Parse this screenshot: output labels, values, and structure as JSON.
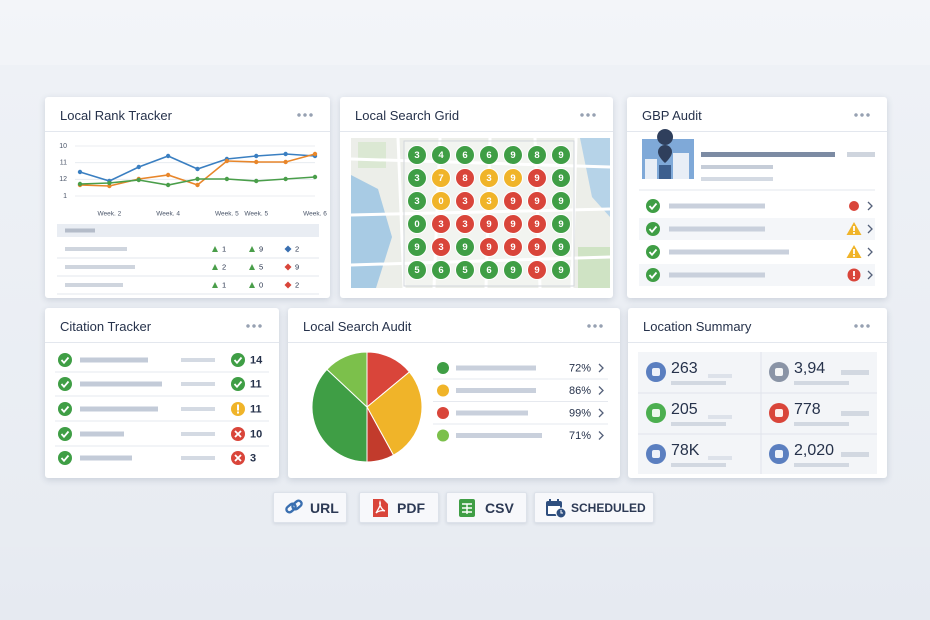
{
  "rank_tracker": {
    "title": "Local Rank Tracker",
    "chart": {
      "type": "line",
      "categories": [
        null,
        "Week. 2",
        null,
        "Week. 4",
        null,
        "Week. 5",
        "Week. 5",
        null,
        "Week. 6"
      ],
      "series": [
        {
          "color": "#3a7fc1",
          "values": [
            11.56,
            12.1,
            11.26,
            10.6,
            11.38,
            10.78,
            10.6,
            10.48,
            10.6
          ]
        },
        {
          "color": "#e8862a",
          "values": [
            12.34,
            12.4,
            11.98,
            11.74,
            12.34,
            10.9,
            10.96,
            10.96,
            10.48
          ]
        },
        {
          "color": "#4a9e4a",
          "values": [
            12.28,
            12.22,
            12.04,
            12.34,
            11.98,
            11.98,
            12.1,
            11.98,
            11.86
          ]
        }
      ],
      "ylim": [
        9.7,
        13.3
      ],
      "yticks": [
        10,
        11,
        12,
        {
          "value": 13,
          "label": "1"
        }
      ],
      "y_reversed": true,
      "grid": true
    },
    "table": {
      "rows": [
        [
          1,
          9,
          2
        ],
        [
          2,
          5,
          9
        ],
        [
          1,
          0,
          2
        ]
      ],
      "icon_colors": [
        [
          "#4a9e4a",
          "#4a9e4a",
          "#3a6fb0"
        ],
        [
          "#4a9e4a",
          "#4a9e4a",
          "#d9453a"
        ],
        [
          "#4a9e4a",
          "#4a9e4a",
          "#d9453a"
        ]
      ]
    }
  },
  "search_grid": {
    "title": "Local Search Grid",
    "rows": [
      {
        "values": [
          3,
          4,
          6,
          6,
          9,
          8,
          9
        ],
        "colors": [
          "#3f9e45",
          "#3f9e45",
          "#3f9e45",
          "#3f9e45",
          "#3f9e45",
          "#3f9e45",
          "#3f9e45"
        ]
      },
      {
        "values": [
          3,
          7,
          8,
          3,
          9,
          9,
          9
        ],
        "colors": [
          "#3f9e45",
          "#f0b429",
          "#d9453a",
          "#f0b429",
          "#f0b429",
          "#d9453a",
          "#3f9e45"
        ]
      },
      {
        "values": [
          3,
          0,
          3,
          3,
          9,
          9,
          9
        ],
        "colors": [
          "#3f9e45",
          "#f0b429",
          "#d9453a",
          "#f0b429",
          "#d9453a",
          "#d9453a",
          "#3f9e45"
        ]
      },
      {
        "values": [
          0,
          3,
          3,
          9,
          9,
          9,
          9
        ],
        "colors": [
          "#3f9e45",
          "#d9453a",
          "#d9453a",
          "#d9453a",
          "#d9453a",
          "#d9453a",
          "#3f9e45"
        ]
      },
      {
        "values": [
          9,
          3,
          9,
          9,
          9,
          9,
          9
        ],
        "colors": [
          "#3f9e45",
          "#d9453a",
          "#3f9e45",
          "#d9453a",
          "#d9453a",
          "#d9453a",
          "#3f9e45"
        ]
      },
      {
        "values": [
          5,
          6,
          5,
          6,
          9,
          9,
          9
        ],
        "colors": [
          "#3f9e45",
          "#3f9e45",
          "#3f9e45",
          "#3f9e45",
          "#3f9e45",
          "#d9453a",
          "#3f9e45"
        ]
      }
    ]
  },
  "gbp_audit": {
    "title": "GBP Audit"
  },
  "citation_tracker": {
    "title": "Citation Tracker",
    "values": [
      14,
      11,
      11,
      10,
      3
    ]
  },
  "search_audit": {
    "title": "Local Search Audit",
    "pie": {
      "type": "pie",
      "values": [
        14,
        28,
        8,
        37,
        13
      ],
      "colors": [
        "#d9453a",
        "#f0b429",
        "#c23b2c",
        "#3f9e45",
        "#7cc04b"
      ]
    },
    "metrics": {
      "values": [
        72,
        86,
        99,
        71
      ],
      "value_labels": [
        "72%",
        "86%",
        "99%",
        "71%"
      ],
      "colors": [
        "#3f9e45",
        "#f0b429",
        "#d9453a",
        "#7cc04b"
      ]
    }
  },
  "location_summary": {
    "title": "Location Summary",
    "stats": [
      "263",
      "3,94",
      "205",
      "778",
      "78K",
      "2,020"
    ]
  },
  "buttons": [
    "URL",
    "PDF",
    "CSV",
    "SCHEDULED"
  ]
}
